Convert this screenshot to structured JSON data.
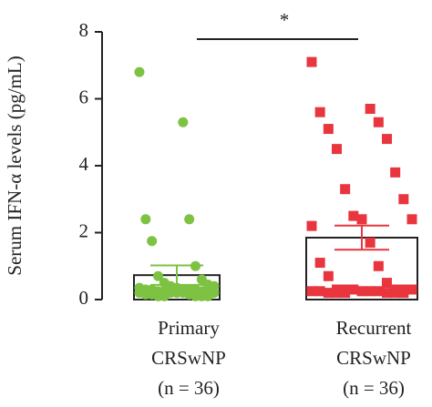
{
  "chart_data": {
    "type": "bar-scatter",
    "ylabel": "Serum IFN-α levels (pg/mL)",
    "categories": [
      [
        "Primary",
        "CRSwNP",
        "(n = 36)"
      ],
      [
        "Recurrent",
        "CRSwNP",
        "(n = 36)"
      ]
    ],
    "means": [
      0.73,
      1.85
    ],
    "errors": [
      0.29,
      0.36
    ],
    "colors": [
      "#7dc242",
      "#e8353e"
    ],
    "markers": [
      "circle",
      "square"
    ],
    "points": [
      [
        6.8,
        5.3,
        2.4,
        2.4,
        1.75,
        1.0,
        0.7,
        0.6,
        0.5,
        0.45,
        0.4,
        0.4,
        0.35,
        0.35,
        0.3,
        0.3,
        0.3,
        0.3,
        0.3,
        0.25,
        0.25,
        0.25,
        0.25,
        0.2,
        0.2,
        0.2,
        0.2,
        0.2,
        0.15,
        0.15,
        0.15,
        0.1,
        0.1,
        0.1,
        0.1,
        0.1
      ],
      [
        7.1,
        5.7,
        5.6,
        5.3,
        5.1,
        4.8,
        4.5,
        3.8,
        3.3,
        3.0,
        2.5,
        2.4,
        2.4,
        2.2,
        1.7,
        1.1,
        1.0,
        0.7,
        0.5,
        0.3,
        0.3,
        0.3,
        0.3,
        0.3,
        0.3,
        0.25,
        0.25,
        0.25,
        0.25,
        0.25,
        0.2,
        0.2,
        0.2,
        0.2,
        0.2,
        0.2
      ]
    ],
    "annotation": "*",
    "ylim": [
      0,
      8
    ],
    "yticks": [
      0,
      2,
      4,
      6,
      8
    ]
  }
}
